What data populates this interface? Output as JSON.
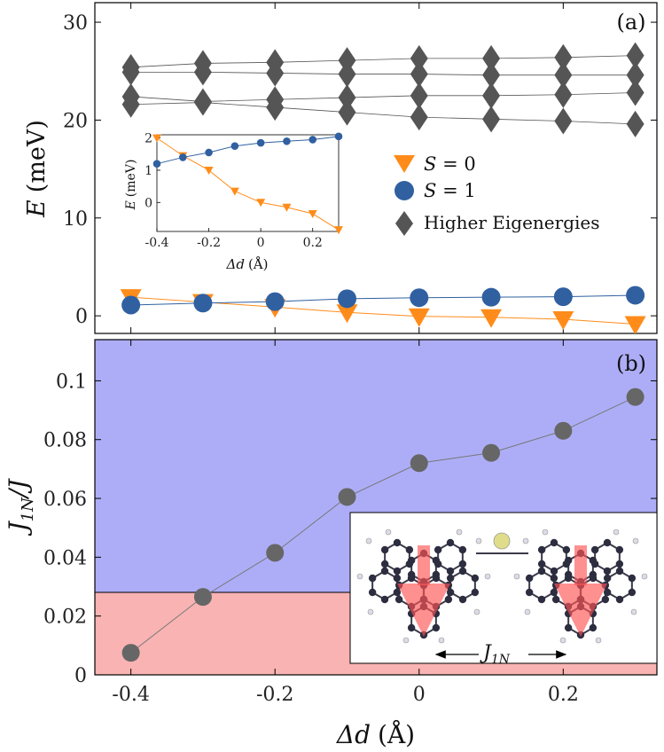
{
  "colors": {
    "s0": "#ff8c1a",
    "s1": "#3060a0",
    "higher": "#555555",
    "ratio": "#666666",
    "region_high": "#adadf7",
    "region_low": "#f9b3b3",
    "axis": "#000000"
  },
  "chart_data": [
    {
      "id": "panel-a",
      "type": "scatter",
      "panel_label": "(a)",
      "ylabel_var": "E",
      "ylabel_unit": "(meV)",
      "x": [
        -0.4,
        -0.3,
        -0.2,
        -0.1,
        0.0,
        0.1,
        0.2,
        0.3
      ],
      "xlim": [
        -0.45,
        0.33
      ],
      "ylim": [
        -1.8,
        32.0
      ],
      "yticks": [
        0,
        10,
        20,
        30
      ],
      "series": [
        {
          "name": "S = 0",
          "marker": "triangle-down",
          "values": [
            1.9,
            1.4,
            0.9,
            0.35,
            -0.05,
            -0.15,
            -0.35,
            -0.85
          ]
        },
        {
          "name": "S = 1",
          "marker": "circle",
          "values": [
            1.1,
            1.3,
            1.45,
            1.75,
            1.85,
            1.9,
            1.95,
            2.1
          ]
        },
        {
          "name": "Higher Eigenergies A",
          "marker": "diamond",
          "values": [
            25.4,
            25.8,
            25.9,
            26.1,
            26.3,
            26.3,
            26.4,
            26.6
          ]
        },
        {
          "name": "Higher Eigenergies B",
          "marker": "diamond",
          "values": [
            24.9,
            24.9,
            24.8,
            24.7,
            24.7,
            24.6,
            24.6,
            24.6
          ]
        },
        {
          "name": "Higher Eigenergies C",
          "marker": "diamond",
          "values": [
            22.4,
            21.9,
            22.1,
            22.3,
            22.5,
            22.5,
            22.6,
            22.8
          ]
        },
        {
          "name": "Higher Eigenergies D",
          "marker": "diamond",
          "values": [
            21.6,
            21.8,
            21.3,
            20.8,
            20.3,
            20.1,
            19.9,
            19.6
          ]
        }
      ],
      "legend": [
        {
          "var": "S",
          "eq": " = 0",
          "marker": "triangle-down"
        },
        {
          "var": "S",
          "eq": " = 1",
          "marker": "circle"
        },
        {
          "var": "",
          "eq": "Higher Eigenergies",
          "marker": "diamond"
        }
      ],
      "inset": {
        "type": "line",
        "x": [
          -0.4,
          -0.3,
          -0.2,
          -0.1,
          0.0,
          0.1,
          0.2,
          0.3
        ],
        "xlim": [
          -0.4,
          0.3
        ],
        "ylim": [
          -0.9,
          2.1
        ],
        "xticks": [
          "-0.4",
          "-0.2",
          "0",
          "0.2"
        ],
        "xtick_values": [
          -0.4,
          -0.2,
          0,
          0.2
        ],
        "yticks": [
          0,
          1,
          2
        ],
        "xlabel_sym": "Δd",
        "xlabel_unit": "(Å)",
        "ylabel_var": "E",
        "ylabel_unit": "(meV)",
        "series": [
          {
            "name": "S = 0",
            "values": [
              2.0,
              1.45,
              1.0,
              0.35,
              0.0,
              -0.15,
              -0.35,
              -0.85
            ]
          },
          {
            "name": "S = 1",
            "values": [
              1.2,
              1.4,
              1.55,
              1.75,
              1.85,
              1.9,
              1.95,
              2.05
            ]
          }
        ]
      }
    },
    {
      "id": "panel-b",
      "type": "line",
      "panel_label": "(b)",
      "ylabel_main": "J",
      "ylabel_sub": "1N",
      "ylabel_tail": "/J",
      "x": [
        -0.4,
        -0.3,
        -0.2,
        -0.1,
        0.0,
        0.1,
        0.2,
        0.3
      ],
      "values": [
        0.0075,
        0.0265,
        0.0415,
        0.0605,
        0.072,
        0.0755,
        0.083,
        0.0945
      ],
      "xlim": [
        -0.45,
        0.33
      ],
      "ylim": [
        0,
        0.114
      ],
      "threshold": 0.028,
      "yticks": [
        "0",
        "0.02",
        "0.04",
        "0.06",
        "0.08",
        "0.1"
      ],
      "ytick_values": [
        0,
        0.02,
        0.04,
        0.06,
        0.08,
        0.1
      ],
      "xticks": [
        "-0.4",
        "-0.2",
        "0",
        "0.2"
      ],
      "xtick_values": [
        -0.4,
        -0.2,
        0,
        0.2
      ],
      "xlabel_sym": "Δd",
      "xlabel_unit": "(Å)",
      "inset_label_main": "J",
      "inset_label_sub": "1N"
    }
  ]
}
